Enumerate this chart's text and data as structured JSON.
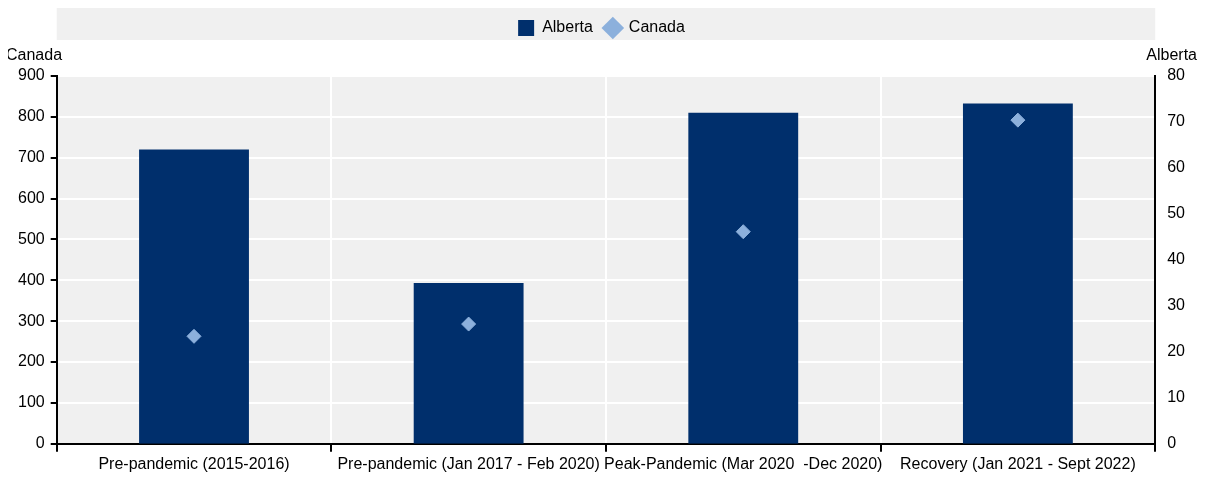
{
  "chart_data": {
    "type": "bar",
    "categories": [
      "Pre-pandemic (2015-2016)",
      "Pre-pandemic (Jan 2017 - Feb 2020)",
      "Peak-Pandemic (Mar 2020  -Dec 2020)",
      "Recovery (Jan 2021 - Sept 2022)"
    ],
    "series": [
      {
        "name": "Alberta",
        "axis": "y2",
        "color": "#002f6c",
        "values": [
          64,
          35,
          72,
          74
        ]
      },
      {
        "name": "Canada",
        "type": "scatter",
        "marker": "diamond",
        "color": "#8cb0dc",
        "values": [
          263,
          293,
          519,
          792
        ]
      }
    ],
    "ylabel": "Canada",
    "y2label": "Alberta",
    "ylim": [
      0,
      900
    ],
    "yticks": [
      0,
      100,
      200,
      300,
      400,
      500,
      600,
      700,
      800,
      900
    ],
    "y2lim": [
      0,
      80
    ],
    "y2ticks": [
      0,
      10,
      20,
      30,
      40,
      50,
      60,
      70,
      80
    ],
    "grid": true,
    "legend": "top"
  }
}
